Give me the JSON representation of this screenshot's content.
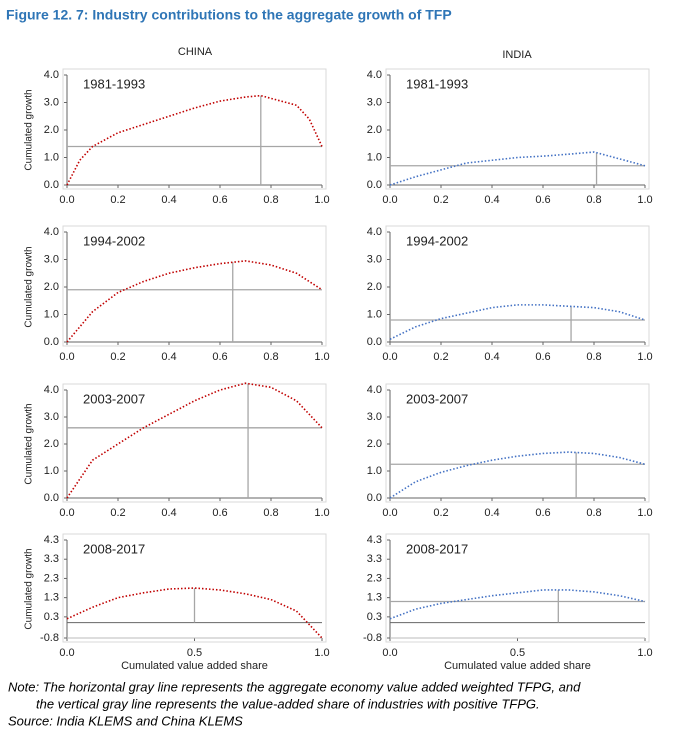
{
  "title": "Figure 12. 7: Industry contributions to the aggregate growth of TFP",
  "columns": [
    "CHINA",
    "INDIA"
  ],
  "note": [
    "Note: The horizontal gray line represents the aggregate economy value added weighted TFPG, and",
    "the vertical gray line represents the value-added share of industries with positive TFPG."
  ],
  "source": "Source: India KLEMS and China KLEMS",
  "chart_data": [
    {
      "type": "line",
      "annotation": "1981-1993",
      "ylabel": "Cumulated growth",
      "x": [
        0,
        0.05,
        0.1,
        0.2,
        0.3,
        0.4,
        0.5,
        0.6,
        0.7,
        0.76,
        0.8,
        0.9,
        0.95,
        1
      ],
      "series": [
        {
          "name": "China",
          "color": "#c00000",
          "values": [
            0,
            0.9,
            1.4,
            1.9,
            2.2,
            2.5,
            2.8,
            3.05,
            3.2,
            3.25,
            3.15,
            2.9,
            2.4,
            1.4
          ]
        }
      ],
      "hline": 1.4,
      "vline": 0.76,
      "xlim": [
        0,
        1
      ],
      "ylim": [
        0,
        4
      ],
      "xticks": [
        {
          "value": 0,
          "label": "0.0"
        },
        0.2,
        0.4,
        0.6,
        0.8,
        {
          "value": 1,
          "label": "1.0"
        }
      ],
      "yticks": [
        {
          "value": 0,
          "label": "0.0"
        },
        {
          "value": 1,
          "label": "1.0"
        },
        {
          "value": 2,
          "label": "2.0"
        },
        {
          "value": 3,
          "label": "3.0"
        },
        {
          "value": 4,
          "label": "4.0"
        }
      ]
    },
    {
      "type": "line",
      "annotation": "1981-1993",
      "x": [
        0,
        0.1,
        0.2,
        0.3,
        0.4,
        0.5,
        0.6,
        0.7,
        0.8,
        0.9,
        1
      ],
      "series": [
        {
          "name": "India",
          "color": "#4472c4",
          "values": [
            0,
            0.3,
            0.55,
            0.8,
            0.9,
            1.0,
            1.05,
            1.12,
            1.2,
            0.95,
            0.7
          ]
        }
      ],
      "hline": 0.7,
      "vline": 0.81,
      "xlim": [
        0,
        1
      ],
      "ylim": [
        0,
        4
      ],
      "xticks": [
        {
          "value": 0,
          "label": "0.0"
        },
        0.2,
        0.4,
        0.6,
        0.8,
        {
          "value": 1,
          "label": "1.0"
        }
      ],
      "yticks": [
        {
          "value": 0,
          "label": "0.0"
        },
        {
          "value": 1,
          "label": "1.0"
        },
        {
          "value": 2,
          "label": "2.0"
        },
        {
          "value": 3,
          "label": "3.0"
        },
        {
          "value": 4,
          "label": "4.0"
        }
      ]
    },
    {
      "type": "line",
      "annotation": "1994-2002",
      "ylabel": "Cumulated growth",
      "x": [
        0,
        0.1,
        0.2,
        0.3,
        0.4,
        0.5,
        0.6,
        0.7,
        0.8,
        0.9,
        1
      ],
      "series": [
        {
          "name": "China",
          "color": "#c00000",
          "values": [
            0,
            1.1,
            1.8,
            2.2,
            2.5,
            2.7,
            2.85,
            2.95,
            2.8,
            2.5,
            1.9
          ]
        }
      ],
      "hline": 1.9,
      "vline": 0.65,
      "xlim": [
        0,
        1
      ],
      "ylim": [
        0,
        4
      ],
      "xticks": [
        {
          "value": 0,
          "label": "0.0"
        },
        0.2,
        0.4,
        0.6,
        0.8,
        {
          "value": 1,
          "label": "1.0"
        }
      ],
      "yticks": [
        {
          "value": 0,
          "label": "0.0"
        },
        {
          "value": 1,
          "label": "1.0"
        },
        {
          "value": 2,
          "label": "2.0"
        },
        {
          "value": 3,
          "label": "3.0"
        },
        {
          "value": 4,
          "label": "4.0"
        }
      ]
    },
    {
      "type": "line",
      "annotation": "1994-2002",
      "x": [
        0,
        0.1,
        0.2,
        0.3,
        0.4,
        0.5,
        0.6,
        0.7,
        0.8,
        0.9,
        1
      ],
      "series": [
        {
          "name": "India",
          "color": "#4472c4",
          "values": [
            0.1,
            0.55,
            0.85,
            1.05,
            1.25,
            1.35,
            1.35,
            1.3,
            1.25,
            1.1,
            0.8
          ]
        }
      ],
      "hline": 0.8,
      "vline": 0.71,
      "xlim": [
        0,
        1
      ],
      "ylim": [
        0,
        4
      ],
      "xticks": [
        {
          "value": 0,
          "label": "0.0"
        },
        0.2,
        0.4,
        0.6,
        0.8,
        {
          "value": 1,
          "label": "1.0"
        }
      ],
      "yticks": [
        {
          "value": 0,
          "label": "0.0"
        },
        {
          "value": 1,
          "label": "1.0"
        },
        {
          "value": 2,
          "label": "2.0"
        },
        {
          "value": 3,
          "label": "3.0"
        },
        {
          "value": 4,
          "label": "4.0"
        }
      ]
    },
    {
      "type": "line",
      "annotation": "2003-2007",
      "ylabel": "Cumulated growth",
      "x": [
        0,
        0.1,
        0.2,
        0.3,
        0.4,
        0.5,
        0.6,
        0.7,
        0.8,
        0.9,
        1
      ],
      "series": [
        {
          "name": "China",
          "color": "#c00000",
          "values": [
            0,
            1.4,
            2.0,
            2.6,
            3.1,
            3.6,
            4.0,
            4.25,
            4.1,
            3.6,
            2.6
          ]
        }
      ],
      "hline": 2.6,
      "vline": 0.71,
      "xlim": [
        0,
        1
      ],
      "ylim": [
        0,
        4
      ],
      "xticks": [
        {
          "value": 0,
          "label": "0.0"
        },
        0.2,
        0.4,
        0.6,
        0.8,
        {
          "value": 1,
          "label": "1.0"
        }
      ],
      "yticks": [
        {
          "value": 0,
          "label": "0.0"
        },
        {
          "value": 1,
          "label": "1.0"
        },
        {
          "value": 2,
          "label": "2.0"
        },
        {
          "value": 3,
          "label": "3.0"
        },
        {
          "value": 4,
          "label": "4.0"
        }
      ]
    },
    {
      "type": "line",
      "annotation": "2003-2007",
      "x": [
        0,
        0.1,
        0.2,
        0.3,
        0.4,
        0.5,
        0.6,
        0.7,
        0.8,
        0.9,
        1
      ],
      "series": [
        {
          "name": "India",
          "color": "#4472c4",
          "values": [
            0,
            0.6,
            0.95,
            1.2,
            1.4,
            1.55,
            1.65,
            1.7,
            1.65,
            1.5,
            1.25
          ]
        }
      ],
      "hline": 1.25,
      "vline": 0.73,
      "xlim": [
        0,
        1
      ],
      "ylim": [
        0,
        4
      ],
      "xticks": [
        {
          "value": 0,
          "label": "0.0"
        },
        0.2,
        0.4,
        0.6,
        0.8,
        {
          "value": 1,
          "label": "1.0"
        }
      ],
      "yticks": [
        {
          "value": 0,
          "label": "0.0"
        },
        {
          "value": 1,
          "label": "1.0"
        },
        {
          "value": 2,
          "label": "2.0"
        },
        {
          "value": 3,
          "label": "3.0"
        },
        {
          "value": 4,
          "label": "4.0"
        }
      ]
    },
    {
      "type": "line",
      "annotation": "2008-2017",
      "ylabel": "Cumulated growth",
      "xlabel": "Cumulated value added share",
      "x": [
        0,
        0.1,
        0.2,
        0.3,
        0.4,
        0.5,
        0.6,
        0.7,
        0.8,
        0.9,
        1
      ],
      "series": [
        {
          "name": "China",
          "color": "#c00000",
          "values": [
            0.2,
            0.8,
            1.3,
            1.55,
            1.75,
            1.8,
            1.7,
            1.5,
            1.2,
            0.6,
            -0.8
          ]
        }
      ],
      "vline": 0.5,
      "xlim": [
        0,
        1
      ],
      "ylim": [
        -0.8,
        4.3
      ],
      "xticks": [
        {
          "value": 0,
          "label": "0.0"
        },
        0.5,
        {
          "value": 1,
          "label": "1.0"
        }
      ],
      "yticks": [
        -0.8,
        0.3,
        1.3,
        2.3,
        3.3,
        4.3
      ]
    },
    {
      "type": "line",
      "annotation": "2008-2017",
      "xlabel": "Cumulated value added share",
      "x": [
        0,
        0.1,
        0.2,
        0.3,
        0.4,
        0.5,
        0.6,
        0.7,
        0.8,
        0.9,
        1
      ],
      "series": [
        {
          "name": "India",
          "color": "#4472c4",
          "values": [
            0.2,
            0.7,
            1.0,
            1.2,
            1.4,
            1.55,
            1.7,
            1.7,
            1.6,
            1.4,
            1.1
          ]
        }
      ],
      "hline": 1.1,
      "vline": 0.66,
      "xlim": [
        0,
        1
      ],
      "ylim": [
        -0.8,
        4.3
      ],
      "xticks": [
        {
          "value": 0,
          "label": "0.0"
        },
        0.5,
        {
          "value": 1,
          "label": "1.0"
        }
      ],
      "yticks": [
        -0.8,
        0.3,
        1.3,
        2.3,
        3.3,
        4.3
      ]
    }
  ]
}
